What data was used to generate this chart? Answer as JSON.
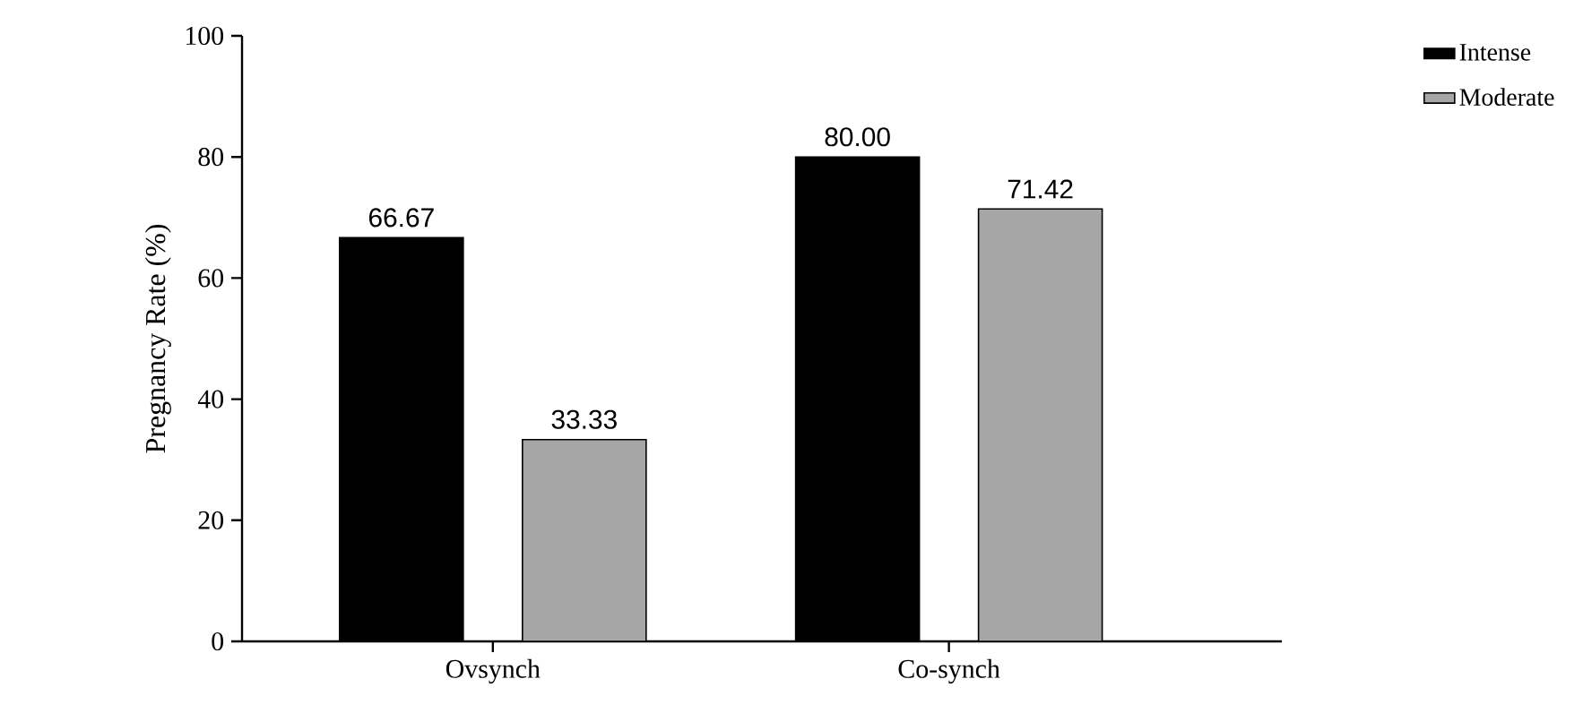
{
  "chart_data": {
    "type": "bar",
    "ylabel": "Pregnancy Rate (%)",
    "categories": [
      "Ovsynch",
      "Co-synch"
    ],
    "series": [
      {
        "name": "Intense",
        "color": "#000000",
        "values": [
          66.67,
          80.0
        ],
        "value_labels": [
          "66.67",
          "80.00"
        ]
      },
      {
        "name": "Moderate",
        "color": "#a6a6a6",
        "values": [
          33.33,
          71.42
        ],
        "value_labels": [
          "33.33",
          "71.42"
        ]
      }
    ],
    "ylim": [
      0,
      100
    ],
    "yticks": [
      0,
      20,
      40,
      60,
      80,
      100
    ],
    "grid": false,
    "legend": "top right"
  }
}
